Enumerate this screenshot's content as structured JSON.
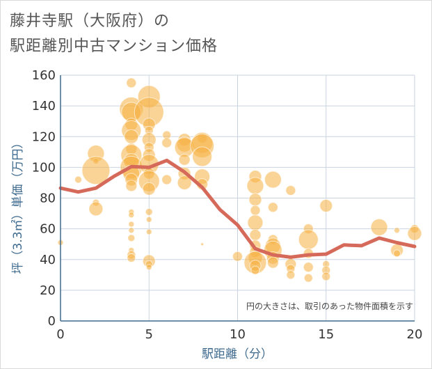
{
  "title_line1": "藤井寺駅（大阪府）の",
  "title_line2": "駅距離別中古マンション価格",
  "chart_data": {
    "type": "scatter",
    "xlabel": "駅距離（分）",
    "ylabel": "坪（3.3㎡）単価（万円）",
    "xlim": [
      0,
      20
    ],
    "ylim": [
      0,
      160
    ],
    "x_ticks": [
      "0",
      "5",
      "10",
      "15",
      "20"
    ],
    "y_ticks": [
      "0",
      "20",
      "40",
      "60",
      "80",
      "100",
      "120",
      "140",
      "160"
    ],
    "grid": true,
    "annotation": "円の大きさは、取引のあった物件面積を示す",
    "colors": {
      "bubble": "#f5b041",
      "line": "#d66a5a",
      "grid": "#c9d3e0",
      "axis": "#3e6a8e"
    },
    "bubbles": [
      {
        "x": 0,
        "y": 51,
        "s": 4
      },
      {
        "x": 1,
        "y": 92,
        "s": 5
      },
      {
        "x": 2,
        "y": 109,
        "s": 12
      },
      {
        "x": 2,
        "y": 104,
        "s": 4
      },
      {
        "x": 2,
        "y": 98,
        "s": 20
      },
      {
        "x": 2,
        "y": 77,
        "s": 5
      },
      {
        "x": 2,
        "y": 73,
        "s": 10
      },
      {
        "x": 4,
        "y": 155,
        "s": 7
      },
      {
        "x": 4,
        "y": 138,
        "s": 17
      },
      {
        "x": 4,
        "y": 136,
        "s": 14
      },
      {
        "x": 4,
        "y": 128,
        "s": 9
      },
      {
        "x": 4,
        "y": 124,
        "s": 14
      },
      {
        "x": 4,
        "y": 120,
        "s": 10
      },
      {
        "x": 4,
        "y": 112,
        "s": 8
      },
      {
        "x": 4,
        "y": 108,
        "s": 15
      },
      {
        "x": 4,
        "y": 104,
        "s": 11
      },
      {
        "x": 4,
        "y": 100,
        "s": 16
      },
      {
        "x": 4,
        "y": 96,
        "s": 12
      },
      {
        "x": 4,
        "y": 92,
        "s": 9
      },
      {
        "x": 4,
        "y": 88,
        "s": 8
      },
      {
        "x": 4,
        "y": 71,
        "s": 4
      },
      {
        "x": 4,
        "y": 69,
        "s": 4
      },
      {
        "x": 4,
        "y": 63,
        "s": 4
      },
      {
        "x": 4,
        "y": 59,
        "s": 4
      },
      {
        "x": 4,
        "y": 54,
        "s": 5
      },
      {
        "x": 4,
        "y": 46,
        "s": 4
      },
      {
        "x": 4,
        "y": 43,
        "s": 6
      },
      {
        "x": 4,
        "y": 41,
        "s": 6
      },
      {
        "x": 5,
        "y": 146,
        "s": 16
      },
      {
        "x": 5,
        "y": 136,
        "s": 21
      },
      {
        "x": 5,
        "y": 128,
        "s": 9
      },
      {
        "x": 5,
        "y": 124,
        "s": 6
      },
      {
        "x": 5,
        "y": 118,
        "s": 10
      },
      {
        "x": 5,
        "y": 113,
        "s": 7
      },
      {
        "x": 5,
        "y": 108,
        "s": 9
      },
      {
        "x": 5,
        "y": 102,
        "s": 14
      },
      {
        "x": 5,
        "y": 96,
        "s": 8
      },
      {
        "x": 5,
        "y": 91,
        "s": 15
      },
      {
        "x": 5,
        "y": 86,
        "s": 9
      },
      {
        "x": 5,
        "y": 71,
        "s": 5
      },
      {
        "x": 5,
        "y": 66,
        "s": 4
      },
      {
        "x": 5,
        "y": 58,
        "s": 4
      },
      {
        "x": 5,
        "y": 39,
        "s": 9
      },
      {
        "x": 5,
        "y": 37,
        "s": 5
      },
      {
        "x": 5,
        "y": 35,
        "s": 4
      },
      {
        "x": 6,
        "y": 121,
        "s": 6
      },
      {
        "x": 6,
        "y": 116,
        "s": 7
      },
      {
        "x": 6,
        "y": 92,
        "s": 7
      },
      {
        "x": 7,
        "y": 118,
        "s": 9
      },
      {
        "x": 7,
        "y": 115,
        "s": 11
      },
      {
        "x": 7,
        "y": 113,
        "s": 14
      },
      {
        "x": 7,
        "y": 105,
        "s": 8
      },
      {
        "x": 7,
        "y": 96,
        "s": 9
      },
      {
        "x": 7,
        "y": 90,
        "s": 10
      },
      {
        "x": 8,
        "y": 119,
        "s": 7
      },
      {
        "x": 8,
        "y": 116,
        "s": 15
      },
      {
        "x": 8,
        "y": 114,
        "s": 17
      },
      {
        "x": 8,
        "y": 107,
        "s": 14
      },
      {
        "x": 8,
        "y": 94,
        "s": 11
      },
      {
        "x": 8,
        "y": 89,
        "s": 8
      },
      {
        "x": 8,
        "y": 50,
        "s": 2
      },
      {
        "x": 10,
        "y": 42,
        "s": 7
      },
      {
        "x": 11,
        "y": 94,
        "s": 9
      },
      {
        "x": 11,
        "y": 88,
        "s": 12
      },
      {
        "x": 11,
        "y": 79,
        "s": 9
      },
      {
        "x": 11,
        "y": 72,
        "s": 7
      },
      {
        "x": 11,
        "y": 64,
        "s": 11
      },
      {
        "x": 11,
        "y": 56,
        "s": 8
      },
      {
        "x": 11,
        "y": 49,
        "s": 8
      },
      {
        "x": 11,
        "y": 45,
        "s": 8
      },
      {
        "x": 11,
        "y": 41,
        "s": 10
      },
      {
        "x": 11,
        "y": 38,
        "s": 16
      },
      {
        "x": 11,
        "y": 36,
        "s": 8
      },
      {
        "x": 11,
        "y": 33,
        "s": 6
      },
      {
        "x": 12,
        "y": 92,
        "s": 12
      },
      {
        "x": 12,
        "y": 74,
        "s": 7
      },
      {
        "x": 12,
        "y": 53,
        "s": 7
      },
      {
        "x": 12,
        "y": 49,
        "s": 11
      },
      {
        "x": 12,
        "y": 46,
        "s": 13
      },
      {
        "x": 12,
        "y": 41,
        "s": 9
      },
      {
        "x": 12,
        "y": 38,
        "s": 8
      },
      {
        "x": 13,
        "y": 85,
        "s": 7
      },
      {
        "x": 13,
        "y": 37,
        "s": 8
      },
      {
        "x": 13,
        "y": 34,
        "s": 6
      },
      {
        "x": 13,
        "y": 30,
        "s": 6
      },
      {
        "x": 14,
        "y": 60,
        "s": 7
      },
      {
        "x": 14,
        "y": 53,
        "s": 14
      },
      {
        "x": 14,
        "y": 44,
        "s": 7
      },
      {
        "x": 14,
        "y": 35,
        "s": 7
      },
      {
        "x": 14,
        "y": 28,
        "s": 6
      },
      {
        "x": 15,
        "y": 75,
        "s": 9
      },
      {
        "x": 15,
        "y": 37,
        "s": 5
      },
      {
        "x": 15,
        "y": 33,
        "s": 6
      },
      {
        "x": 15,
        "y": 29,
        "s": 6
      },
      {
        "x": 18,
        "y": 61,
        "s": 12
      },
      {
        "x": 19,
        "y": 59,
        "s": 4
      },
      {
        "x": 19,
        "y": 46,
        "s": 9
      },
      {
        "x": 19,
        "y": 44,
        "s": 5
      },
      {
        "x": 20,
        "y": 60,
        "s": 6
      },
      {
        "x": 20,
        "y": 57,
        "s": 10
      }
    ],
    "series": [
      {
        "x": [
          0,
          1,
          2,
          3,
          4,
          5,
          6,
          7,
          8,
          9,
          10,
          11,
          12,
          13,
          14,
          15,
          16,
          17,
          18,
          19,
          20
        ],
        "values": [
          86.5,
          84,
          86.5,
          94,
          100.5,
          100,
          104.5,
          97,
          87,
          72.5,
          62.5,
          47,
          43,
          41.5,
          43,
          43.5,
          49.5,
          49,
          54,
          51,
          48.5
        ]
      }
    ]
  }
}
